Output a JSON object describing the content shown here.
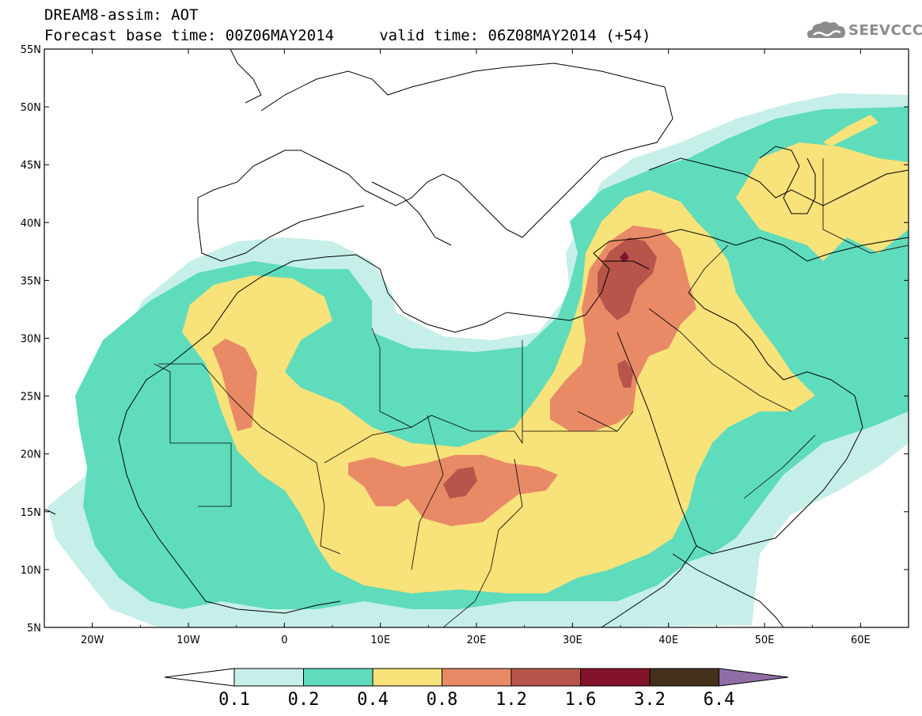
{
  "header": {
    "line1": "DREAM8-assim: AOT",
    "line2": "Forecast base time: 00Z06MAY2014     valid time: 06Z08MAY2014 (+54)"
  },
  "logo": {
    "text": "SEEVCCC",
    "icon": "cloud-icon"
  },
  "map": {
    "lon_range": [
      -25,
      65
    ],
    "lat_range": [
      5,
      55
    ],
    "lat_labels": [
      "55N",
      "50N",
      "45N",
      "40N",
      "35N",
      "30N",
      "25N",
      "20N",
      "15N",
      "10N",
      "5N"
    ],
    "lon_labels": [
      "20W",
      "10W",
      "0",
      "10E",
      "20E",
      "30E",
      "40E",
      "50E",
      "60E"
    ]
  },
  "legend": {
    "levels": [
      "0.1",
      "0.2",
      "0.4",
      "0.8",
      "1.2",
      "1.6",
      "3.2",
      "6.4"
    ],
    "colors": [
      "#ffffff",
      "#c6efe9",
      "#5fdcbb",
      "#f8e27a",
      "#e98a67",
      "#b8554a",
      "#83132b",
      "#43301a",
      "#8f6ea8"
    ]
  }
}
